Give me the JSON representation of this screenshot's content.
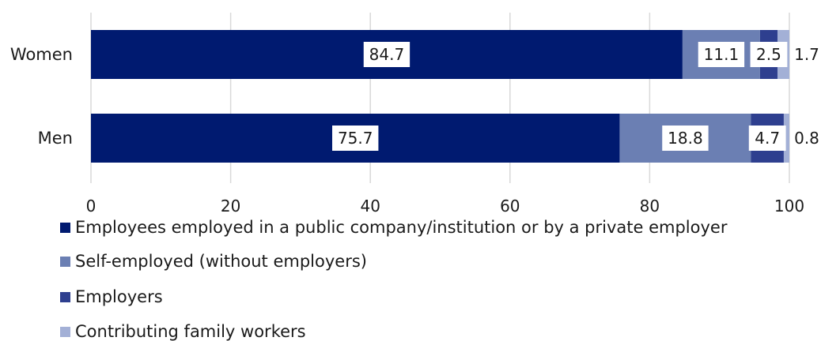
{
  "chart_data": {
    "type": "bar",
    "orientation": "horizontal",
    "stacked": true,
    "categories": [
      "Women",
      "Men"
    ],
    "series": [
      {
        "name": "Employees employed in a public company/institution or by a private employer",
        "values": [
          84.7,
          75.7
        ],
        "color": "#001a70"
      },
      {
        "name": "Self-employed (without employers)",
        "values": [
          11.1,
          18.8
        ],
        "color": "#6b7fb3"
      },
      {
        "name": "Employers",
        "values": [
          2.5,
          4.7
        ],
        "color": "#2e3f8f"
      },
      {
        "name": "Contributing family workers",
        "values": [
          1.7,
          0.8
        ],
        "color": "#a3b0d6"
      }
    ],
    "data_labels": [
      [
        "84.7",
        "75.7"
      ],
      [
        "11.1",
        "18.8"
      ],
      [
        "2.5",
        "4.7"
      ],
      [
        "1.7",
        "0.8"
      ]
    ],
    "xlim": [
      0,
      100
    ],
    "xticks": [
      0,
      20,
      40,
      60,
      80,
      100
    ],
    "grid": true,
    "legend_position": "bottom"
  }
}
